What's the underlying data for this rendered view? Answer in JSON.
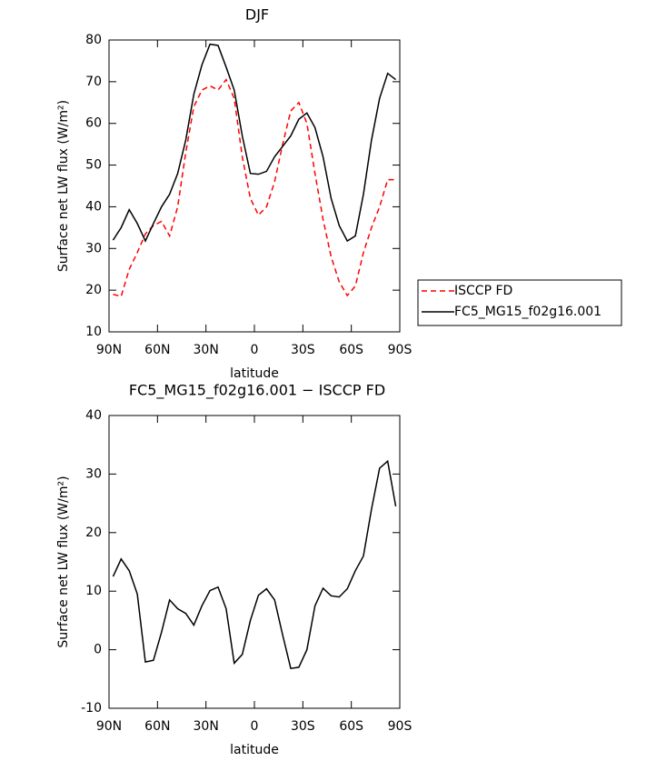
{
  "chart_data": [
    {
      "type": "line",
      "title": "DJF",
      "x_label": "latitude",
      "y_label": "Surface net LW flux (W/m²)",
      "xlim": [
        90,
        -90
      ],
      "xticks": [
        {
          "value": 90,
          "label": "90N"
        },
        {
          "value": 60,
          "label": "60N"
        },
        {
          "value": 30,
          "label": "30N"
        },
        0,
        {
          "value": -30,
          "label": "30S"
        },
        {
          "value": -60,
          "label": "60S"
        },
        {
          "value": -90,
          "label": "90S"
        }
      ],
      "ylim": [
        10,
        80
      ],
      "yticks": [
        10,
        20,
        30,
        40,
        50,
        60,
        70,
        80
      ],
      "legend": "right",
      "x": [
        87.5,
        82.5,
        77.5,
        72.5,
        67.5,
        62.5,
        57.5,
        52.5,
        47.5,
        42.5,
        37.5,
        32.5,
        27.5,
        22.5,
        17.5,
        12.5,
        7.5,
        2.5,
        -2.5,
        -7.5,
        -12.5,
        -17.5,
        -22.5,
        -27.5,
        -32.5,
        -37.5,
        -42.5,
        -47.5,
        -52.5,
        -57.5,
        -62.5,
        -67.5,
        -72.5,
        -77.5,
        -82.5,
        -87.5
      ],
      "series": [
        {
          "name": "ISCCP FD",
          "color": "#ff0000",
          "dash": true,
          "values": [
            19,
            18.5,
            25,
            29,
            33.5,
            35.5,
            36.5,
            33,
            40,
            53,
            64,
            68,
            69,
            68,
            70.5,
            66,
            52,
            42,
            38,
            40,
            46,
            55,
            63,
            65,
            60,
            48,
            37,
            28,
            22,
            18.7,
            21,
            29,
            35,
            40,
            46.5,
            46.5
          ]
        },
        {
          "name": "FC5_MG15_f02g16.001",
          "color": "#000000",
          "dash": false,
          "values": [
            32,
            35,
            39.3,
            36,
            31.8,
            36,
            40,
            43,
            48,
            56,
            67,
            74,
            79,
            78.7,
            73.5,
            68,
            57,
            48,
            47.8,
            48.5,
            52,
            54.5,
            57,
            61,
            62.5,
            59,
            52,
            42,
            35.5,
            31.8,
            33,
            43,
            56,
            66,
            72,
            70.5
          ]
        }
      ]
    },
    {
      "type": "line",
      "title": "FC5_MG15_f02g16.001 − ISCCP FD",
      "x_label": "latitude",
      "y_label": "Surface net LW flux (W/m²)",
      "xlim": [
        90,
        -90
      ],
      "xticks": [
        {
          "value": 90,
          "label": "90N"
        },
        {
          "value": 60,
          "label": "60N"
        },
        {
          "value": 30,
          "label": "30N"
        },
        0,
        {
          "value": -30,
          "label": "30S"
        },
        {
          "value": -60,
          "label": "60S"
        },
        {
          "value": -90,
          "label": "90S"
        }
      ],
      "ylim": [
        -10,
        40
      ],
      "yticks": [
        -10,
        0,
        10,
        20,
        30,
        40
      ],
      "x": [
        87.5,
        82.5,
        77.5,
        72.5,
        67.5,
        62.5,
        57.5,
        52.5,
        47.5,
        42.5,
        37.5,
        32.5,
        27.5,
        22.5,
        17.5,
        12.5,
        7.5,
        2.5,
        -2.5,
        -7.5,
        -12.5,
        -17.5,
        -22.5,
        -27.5,
        -32.5,
        -37.5,
        -42.5,
        -47.5,
        -52.5,
        -57.5,
        -62.5,
        -67.5,
        -72.5,
        -77.5,
        -82.5,
        -87.5
      ],
      "series": [
        {
          "color": "#000000",
          "dash": false,
          "values": [
            12.5,
            15.5,
            13.5,
            9.5,
            -2.1,
            -1.8,
            3,
            8.5,
            7,
            6.2,
            4.2,
            7.5,
            10.1,
            10.7,
            7,
            -2.3,
            -0.8,
            5,
            9.3,
            10.4,
            8.5,
            2.5,
            -3.2,
            -3,
            0,
            7.5,
            10.5,
            9.2,
            9,
            10.4,
            13.5,
            16,
            24,
            31,
            32.2,
            24.5
          ]
        }
      ]
    }
  ]
}
